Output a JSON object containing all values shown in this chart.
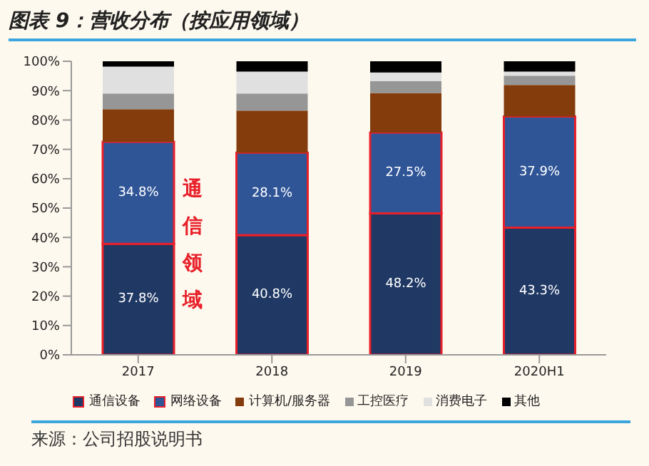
{
  "chart_data": {
    "type": "bar",
    "title": "图表 9：营收分布（按应用领域）",
    "stacked": true,
    "categories": [
      "2017",
      "2018",
      "2019",
      "2020H1"
    ],
    "series": [
      {
        "name": "通信设备",
        "color": "#1f3864",
        "values": [
          37.8,
          40.8,
          48.2,
          43.3
        ],
        "value_labels": [
          "37.8%",
          "40.8%",
          "48.2%",
          "43.3%"
        ]
      },
      {
        "name": "网络设备",
        "color": "#2f5597",
        "values": [
          34.8,
          28.1,
          27.5,
          37.9
        ],
        "value_labels": [
          "34.8%",
          "28.1%",
          "27.5%",
          "37.9%"
        ]
      },
      {
        "name": "计算机/服务器",
        "color": "#843c0c",
        "values": [
          11.1,
          14.3,
          13.5,
          10.7
        ]
      },
      {
        "name": "工控医疗",
        "color": "#969696",
        "values": [
          5.3,
          5.8,
          4.0,
          3.2
        ]
      },
      {
        "name": "消费电子",
        "color": "#e0e0e0",
        "values": [
          9.2,
          7.5,
          3.0,
          1.4
        ]
      },
      {
        "name": "其他",
        "color": "#000000",
        "values": [
          1.8,
          3.5,
          3.8,
          3.5
        ]
      }
    ],
    "ylim": [
      0,
      100
    ],
    "yticks": [
      {
        "value": 0,
        "label": "0%"
      },
      {
        "value": 10,
        "label": "10%"
      },
      {
        "value": 20,
        "label": "20%"
      },
      {
        "value": 30,
        "label": "30%"
      },
      {
        "value": 40,
        "label": "40%"
      },
      {
        "value": 50,
        "label": "50%"
      },
      {
        "value": 60,
        "label": "60%"
      },
      {
        "value": 70,
        "label": "70%"
      },
      {
        "value": 80,
        "label": "80%"
      },
      {
        "value": 90,
        "label": "90%"
      },
      {
        "value": 100,
        "label": "100%"
      }
    ],
    "grid": false,
    "legend": "bottom",
    "annotations": [
      "通信领域",
      "来源：公司招股说明书"
    ]
  }
}
